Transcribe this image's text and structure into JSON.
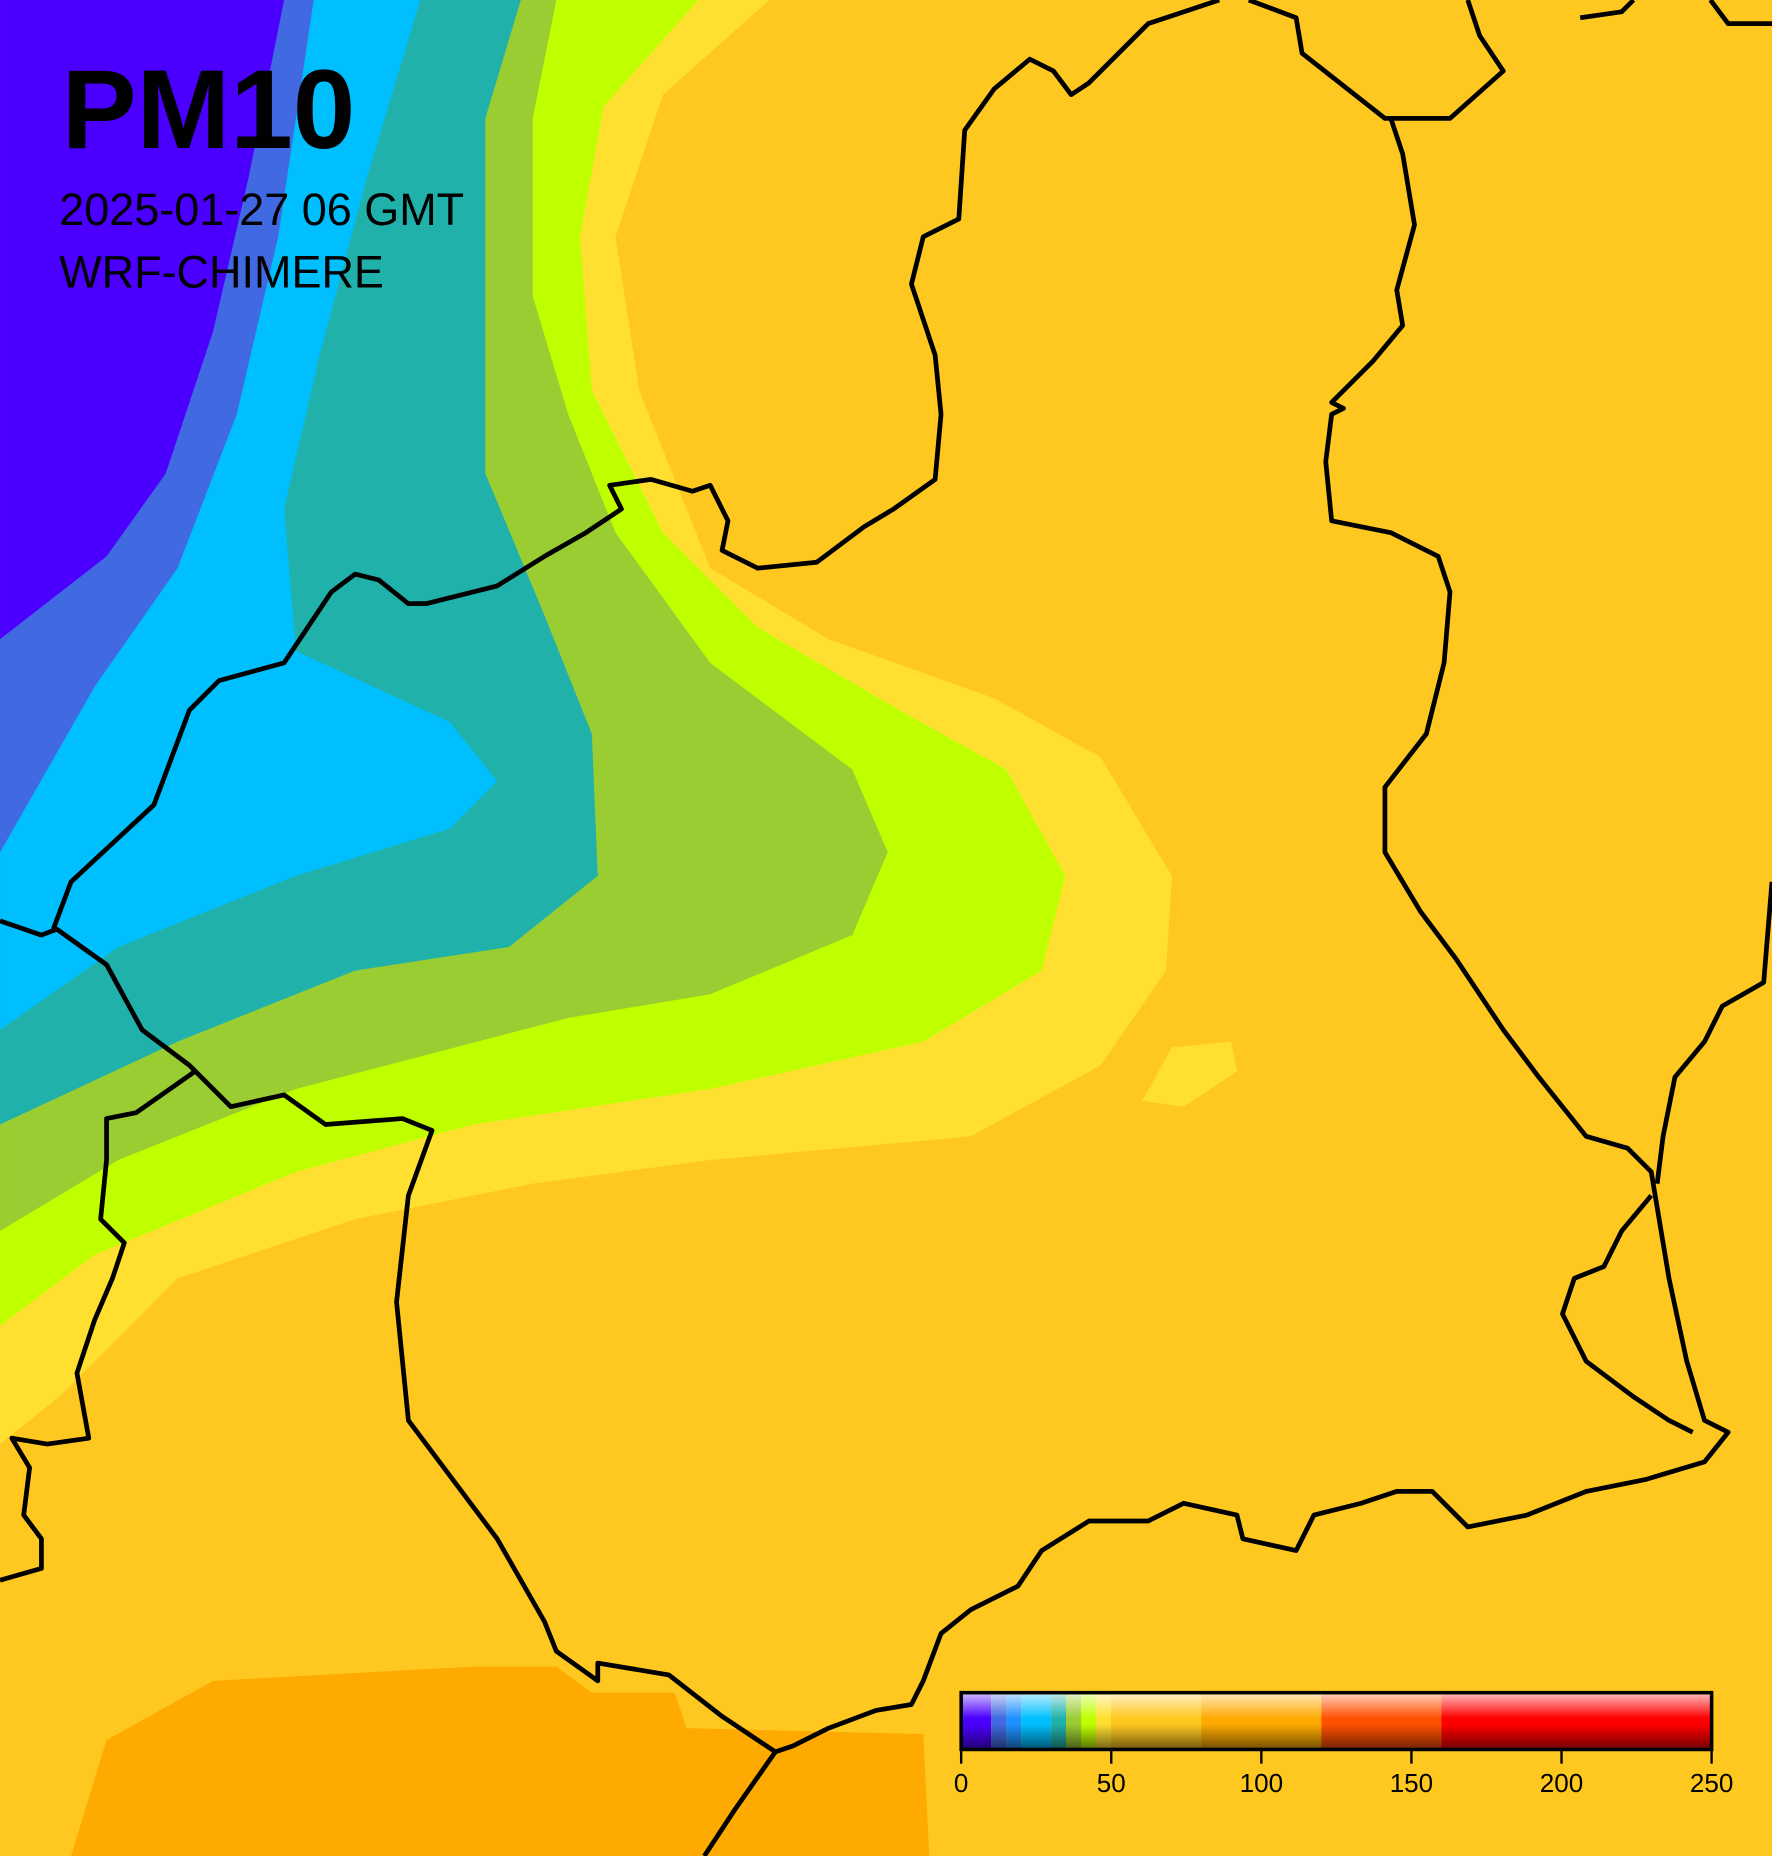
{
  "title": "PM10",
  "subtitle": "2025-01-27 06 GMT",
  "model": "WRF-CHIMERE",
  "colorbar": {
    "range": [
      0,
      250
    ],
    "ticks": [
      0,
      50,
      100,
      150,
      200,
      250
    ],
    "levels": [
      {
        "from": 0,
        "to": 10,
        "color": "#4b00ff"
      },
      {
        "from": 10,
        "to": 15,
        "color": "#4169e1"
      },
      {
        "from": 15,
        "to": 20,
        "color": "#1e90ff"
      },
      {
        "from": 20,
        "to": 30,
        "color": "#00bfff"
      },
      {
        "from": 30,
        "to": 35,
        "color": "#20b2aa"
      },
      {
        "from": 35,
        "to": 40,
        "color": "#9acd32"
      },
      {
        "from": 40,
        "to": 45,
        "color": "#c0ff00"
      },
      {
        "from": 45,
        "to": 50,
        "color": "#ffe030"
      },
      {
        "from": 50,
        "to": 80,
        "color": "#ffc820"
      },
      {
        "from": 80,
        "to": 120,
        "color": "#ffaa00"
      },
      {
        "from": 120,
        "to": 160,
        "color": "#ff5000"
      },
      {
        "from": 160,
        "to": 250,
        "color": "#ff0000"
      }
    ]
  }
}
